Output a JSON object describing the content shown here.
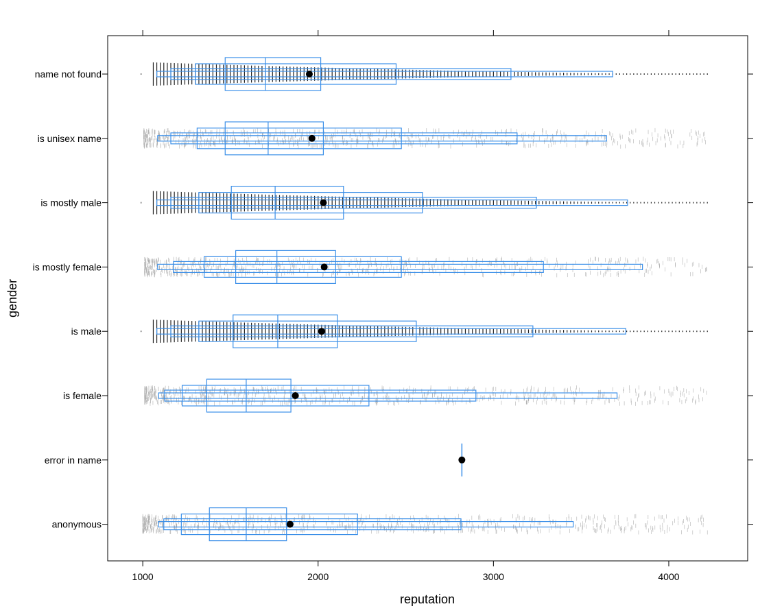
{
  "chart_data": {
    "type": "boxplot",
    "xlabel": "reputation",
    "ylabel": "gender",
    "xlim": [
      800,
      4450
    ],
    "xticks": [
      1000,
      2000,
      3000,
      4000
    ],
    "xtick_labels": [
      "1000",
      "2000",
      "3000",
      "4000"
    ],
    "categories": [
      "anonymous",
      "error in name",
      "is female",
      "is male",
      "is mostly female",
      "is mostly male",
      "is unisex name",
      "name not found"
    ],
    "colors": {
      "box": "#3b8fe8",
      "mean_point": "#000000",
      "jitter": "#b0b0b0",
      "jitter_dense": "#222222"
    },
    "series": [
      {
        "category": "anonymous",
        "mean": 1840,
        "boxes": [
          [
            1380,
            1820,
            1590
          ],
          [
            1220,
            2225
          ],
          [
            1120,
            2815
          ],
          [
            1090,
            3455
          ]
        ],
        "data_range": [
          1000,
          4220
        ],
        "jitter": "light"
      },
      {
        "category": "error in name",
        "mean": 2820,
        "boxes": [],
        "single_value": 2820,
        "jitter": "none"
      },
      {
        "category": "is female",
        "mean": 1870,
        "boxes": [
          [
            1365,
            1845,
            1590
          ],
          [
            1225,
            2290
          ],
          [
            1125,
            2900
          ],
          [
            1090,
            3705
          ]
        ],
        "data_range": [
          1010,
          4220
        ],
        "jitter": "light"
      },
      {
        "category": "is male",
        "mean": 2020,
        "boxes": [
          [
            1515,
            2110,
            1770
          ],
          [
            1320,
            2560
          ],
          [
            1160,
            3225
          ],
          [
            1080,
            3755
          ]
        ],
        "data_range": [
          1020,
          4220
        ],
        "jitter": "dense"
      },
      {
        "category": "is mostly female",
        "mean": 2035,
        "boxes": [
          [
            1530,
            2100,
            1765
          ],
          [
            1350,
            2475
          ],
          [
            1175,
            3285
          ],
          [
            1085,
            3850
          ]
        ],
        "data_range": [
          1010,
          4220
        ],
        "jitter": "light"
      },
      {
        "category": "is mostly male",
        "mean": 2030,
        "boxes": [
          [
            1505,
            2145,
            1755
          ],
          [
            1320,
            2595
          ],
          [
            1160,
            3245
          ],
          [
            1080,
            3765
          ]
        ],
        "data_range": [
          1020,
          4220
        ],
        "jitter": "dense"
      },
      {
        "category": "is unisex name",
        "mean": 1965,
        "boxes": [
          [
            1470,
            2030,
            1715
          ],
          [
            1310,
            2475
          ],
          [
            1160,
            3135
          ],
          [
            1085,
            3645
          ]
        ],
        "data_range": [
          1005,
          4235
        ],
        "jitter": "light"
      },
      {
        "category": "name not found",
        "mean": 1950,
        "boxes": [
          [
            1470,
            2015,
            1700
          ],
          [
            1300,
            2445
          ],
          [
            1160,
            3100
          ],
          [
            1080,
            3680
          ]
        ],
        "data_range": [
          1020,
          4220
        ],
        "jitter": "dense"
      }
    ]
  }
}
